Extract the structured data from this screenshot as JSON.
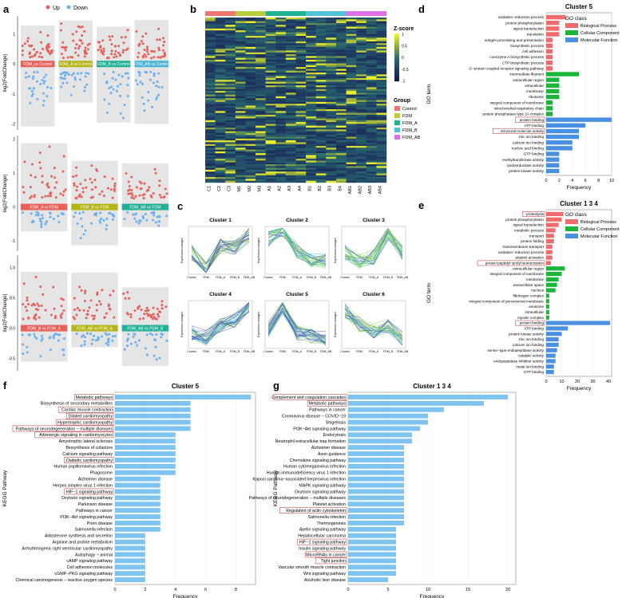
{
  "panels": {
    "a": "a",
    "b": "b",
    "c": "c",
    "d": "d",
    "e": "e",
    "f": "f",
    "g": "g"
  },
  "colors": {
    "up": "#e8605a",
    "down": "#6ab0ee",
    "bp": "#f06b6b",
    "cc": "#1ab53a",
    "mf": "#4a90e2",
    "kegg": "#7fc4f0",
    "highlight": "#c0504d"
  },
  "panel_a": {
    "legend": [
      {
        "label": "Up"
      },
      {
        "label": "Down"
      }
    ],
    "ylabel": "log2(FoldChange)",
    "rows": [
      {
        "ticks": [
          "1",
          "0",
          "-1",
          "-2"
        ],
        "ylim": [
          -2.2,
          1.6
        ],
        "groups": [
          {
            "label": "FDM_vs Control",
            "color": "#e8605a"
          },
          {
            "label": "FDM_A vs Control",
            "color": "#b5b518"
          },
          {
            "label": "FDM_B vs Control",
            "color": "#20b095"
          },
          {
            "label": "FDM_AB vs Control",
            "color": "#4ab4d5"
          }
        ]
      },
      {
        "ticks": [
          "2",
          "1",
          "0",
          "-1"
        ],
        "ylim": [
          -1.3,
          2.1
        ],
        "groups": [
          {
            "label": "FDM_A vs FDM",
            "color": "#e8605a"
          },
          {
            "label": "FDM_B vs FDM",
            "color": "#b5b518"
          },
          {
            "label": "FDM_AB vs FDM",
            "color": "#20b095"
          }
        ]
      },
      {
        "ticks": [
          "1.0",
          "0.5",
          "0.0",
          "-0.5"
        ],
        "ylim": [
          -0.7,
          1.2
        ],
        "groups": [
          {
            "label": "FDM_B vs FDM_A",
            "color": "#e8605a"
          },
          {
            "label": "FDM_AB vs FDM_A",
            "color": "#b5b518"
          },
          {
            "label": "FDM_AB vs FDM_B",
            "color": "#20b095"
          }
        ]
      }
    ]
  },
  "panel_b": {
    "columns": [
      "C1",
      "C2",
      "C3",
      "M1",
      "M2",
      "M3",
      "A1",
      "A2",
      "A3",
      "A4",
      "B1",
      "B2",
      "B3",
      "B4",
      "AB1",
      "AB2",
      "AB3",
      "AB4"
    ],
    "zscore_title": "Z-score",
    "zscore_ticks": [
      "1",
      "0.5",
      "0",
      "-0.5",
      "-1"
    ],
    "group_title": "Group",
    "groups": [
      {
        "label": "Control",
        "color": "#f07470"
      },
      {
        "label": "FDM",
        "color": "#b8cc3c"
      },
      {
        "label": "FDM_A",
        "color": "#1fb394"
      },
      {
        "label": "FDM_B",
        "color": "#52c2d8"
      },
      {
        "label": "FDM_AB",
        "color": "#e070e6"
      }
    ]
  },
  "panel_c": {
    "ylabel": "Expression changes",
    "xticks": [
      "Control",
      "FDM",
      "FDM_A",
      "FDM_B",
      "FDM_AB"
    ],
    "clusters": [
      {
        "title": "Cluster 1",
        "profile": [
          0.45,
          0.08,
          0.6,
          0.55,
          0.85
        ]
      },
      {
        "title": "Cluster 2",
        "profile": [
          0.75,
          0.95,
          0.5,
          0.3,
          0.25
        ]
      },
      {
        "title": "Cluster 3",
        "profile": [
          0.45,
          0.25,
          0.35,
          0.9,
          0.45
        ]
      },
      {
        "title": "Cluster 4",
        "profile": [
          0.3,
          0.2,
          0.5,
          0.6,
          0.95
        ]
      },
      {
        "title": "Cluster 5",
        "profile": [
          0.4,
          0.9,
          0.3,
          0.25,
          0.2
        ]
      },
      {
        "title": "Cluster 6",
        "profile": [
          0.8,
          0.5,
          0.35,
          0.45,
          0.2
        ]
      }
    ]
  },
  "chart_data": [
    {
      "type": "bar",
      "title": "Cluster 5",
      "xlabel": "Frequency",
      "ylabel": "GO term",
      "legend_title": "GO class",
      "legend": [
        "Biological Process",
        "Cellular Component",
        "Molecular Function"
      ],
      "xlim": [
        0,
        10
      ],
      "xticks": [
        0,
        2,
        4,
        6,
        8,
        10
      ],
      "categories": [
        "oxidation−reduction process",
        "protein phosphorylation",
        "signal transduction",
        "translation",
        "antigen processing and presentation",
        "biosynthetic process",
        "cell adhesion",
        "coenzyme A biosynthetic process",
        "CTP biosynthetic process",
        "G−protein coupled receptor signaling pathway",
        "intermediate filament",
        "extracellular region",
        "intracellular",
        "membrane",
        "ribosome",
        "integral component of membrane",
        "mitochondrial respiratory chain",
        "protein phosphatase type 2A complex",
        "protein binding",
        "ATP binding",
        "structural molecule activity",
        "zinc ion binding",
        "calcium ion binding",
        "nucleic acid binding",
        "GTP binding",
        "methyltransferase activity",
        "oxidoreductase activity",
        "protein kinase activity"
      ],
      "classes": [
        0,
        0,
        0,
        0,
        0,
        0,
        0,
        0,
        0,
        0,
        1,
        1,
        1,
        1,
        1,
        1,
        1,
        1,
        2,
        2,
        2,
        2,
        2,
        2,
        2,
        2,
        2,
        2
      ],
      "values": [
        3,
        2,
        2,
        2,
        1,
        1,
        1,
        1,
        1,
        1,
        5,
        2,
        2,
        2,
        2,
        1,
        1,
        1,
        10,
        6,
        5,
        5,
        4,
        4,
        2,
        2,
        2,
        2
      ],
      "boxed": [
        "protein binding",
        "structural molecule activity"
      ]
    },
    {
      "type": "bar",
      "title": "Cluster 1 3 4",
      "xlabel": "Frequency",
      "ylabel": "GO term",
      "legend_title": "GO class",
      "legend": [
        "Biological Process",
        "Cellular Component",
        "Molecular Function"
      ],
      "xlim": [
        0,
        42
      ],
      "xticks": [
        0,
        10,
        20,
        30,
        40
      ],
      "categories": [
        "proteolysis",
        "protein phosphorylation",
        "signal transduction",
        "metabolic process",
        "transport",
        "protein folding",
        "transmembrane transport",
        "oxidation−reduction process",
        "platelet activation",
        "protein peptidyl−prolyl isomerization",
        "extracellular region",
        "integral component of membrane",
        "membrane",
        "extracellular space",
        "nucleus",
        "fibrinogen complex",
        "integral component of peroxisomal membrane",
        "exosome",
        "intracellular",
        "myosin complex",
        "protein binding",
        "ATP binding",
        "protein kinase activity",
        "zinc ion binding",
        "calcium ion binding",
        "serine−type endopeptidase activity",
        "catalytic activity",
        "endopeptidase inhibitor activity",
        "metal ion binding",
        "GTP binding"
      ],
      "classes": [
        0,
        0,
        0,
        0,
        0,
        0,
        0,
        0,
        0,
        0,
        1,
        1,
        1,
        1,
        1,
        1,
        1,
        1,
        1,
        1,
        2,
        2,
        2,
        2,
        2,
        2,
        2,
        2,
        2,
        2
      ],
      "values": [
        11,
        10,
        8,
        6,
        5,
        5,
        4,
        4,
        4,
        3,
        12,
        10,
        8,
        7,
        6,
        2,
        2,
        2,
        2,
        2,
        41,
        14,
        10,
        8,
        8,
        7,
        6,
        6,
        5,
        5
      ],
      "boxed": [
        "proteolysis",
        "protein peptidyl−prolyl isomerization",
        "protein binding"
      ]
    },
    {
      "type": "bar",
      "title": "Cluster 5",
      "xlabel": "Frequency",
      "ylabel": "KEGG Pathway",
      "xlim": [
        0,
        9.3
      ],
      "xticks": [
        0,
        2,
        4,
        6,
        8
      ],
      "categories": [
        "Metabolic pathways",
        "Biosynthesis of secondary metabolites",
        "Cardiac muscle contraction",
        "Dilated cardiomyopathy",
        "Hypertrophic cardiomyopathy",
        "Pathways of neurodegeneration − multiple diseases",
        "Adrenergic signaling in cardiomyocytes",
        "Amyotrophic lateral sclerosis",
        "Biosynthesis of cofactors",
        "Calcium signaling pathway",
        "Diabetic cardiomyopathy",
        "Human papillomavirus infection",
        "Phagosome",
        "Alzheimer disease",
        "Herpes simplex virus 1 infection",
        "HIF−1 signaling pathway",
        "Oxytocin signaling pathway",
        "Parkinson disease",
        "Pathways in cancer",
        "PI3K−Akt signaling pathway",
        "Prion disease",
        "Salmonella infection",
        "Aldosterone synthesis and secretion",
        "Arginine and proline metabolism",
        "Arrhythmogenic right ventricular cardiomyopathy",
        "Autophagy − animal",
        "cAMP signaling pathway",
        "Cell adhesion molecules",
        "cGMP−PKG signaling pathway",
        "Chemical carcinogenesis − reactive oxygen species"
      ],
      "values": [
        9,
        5,
        5,
        5,
        5,
        5,
        4,
        4,
        4,
        4,
        4,
        4,
        4,
        3,
        3,
        3,
        3,
        3,
        3,
        3,
        3,
        3,
        2,
        2,
        2,
        2,
        2,
        2,
        2,
        2
      ],
      "boxed": [
        "Metabolic pathways",
        "Cardiac muscle contraction",
        "Dilated cardiomyopathy",
        "Hypertrophic cardiomyopathy",
        "Pathways of neurodegeneration − multiple diseases",
        "Adrenergic signaling in cardiomyocytes",
        "Diabetic cardiomyopathy",
        "HIF−1 signaling pathway"
      ]
    },
    {
      "type": "bar",
      "title": "Cluster 1 3 4",
      "xlabel": "Frequency",
      "ylabel": "KEGG Pathway",
      "xlim": [
        0,
        21
      ],
      "xticks": [
        0,
        5,
        10,
        15,
        20
      ],
      "categories": [
        "Complement and coagulation cascades",
        "Metabolic pathways",
        "Pathways in cancer",
        "Coronavirus disease − COVID−19",
        "Shigellosis",
        "PI3K−Akt signaling pathway",
        "Endocytosis",
        "Neutrophil extracellular trap formation",
        "Alzheimer disease",
        "Axon guidance",
        "Chemokine signaling pathway",
        "Human cytomegalovirus infection",
        "Human immunodeficiency virus 1 infection",
        "Kaposi sarcoma−associated herpesvirus infection",
        "MAPK signaling pathway",
        "Oxytocin signaling pathway",
        "Pathways of neurodegeneration − multiple diseases",
        "Platelet activation",
        "Regulation of actin cytoskeleton",
        "Salmonella infection",
        "Thermogenesis",
        "Apelin signaling pathway",
        "Hepatocellular carcinoma",
        "HIF−1 signaling pathway",
        "Insulin signaling pathway",
        "MicroRNAs in cancer",
        "Tight junction",
        "Vascular smooth muscle contraction",
        "Wnt signaling pathway",
        "Alcoholic liver disease"
      ],
      "values": [
        20,
        17,
        12,
        10,
        10,
        9,
        8,
        8,
        7,
        7,
        7,
        7,
        7,
        7,
        7,
        7,
        7,
        7,
        7,
        7,
        7,
        6,
        6,
        6,
        6,
        6,
        6,
        6,
        6,
        5
      ],
      "boxed": [
        "Complement and coagulation cascades",
        "Metabolic pathways",
        "Regulation of actin cytoskeleton",
        "HIF−1 signaling pathway",
        "MicroRNAs in cancer",
        "Tight junction"
      ]
    }
  ]
}
